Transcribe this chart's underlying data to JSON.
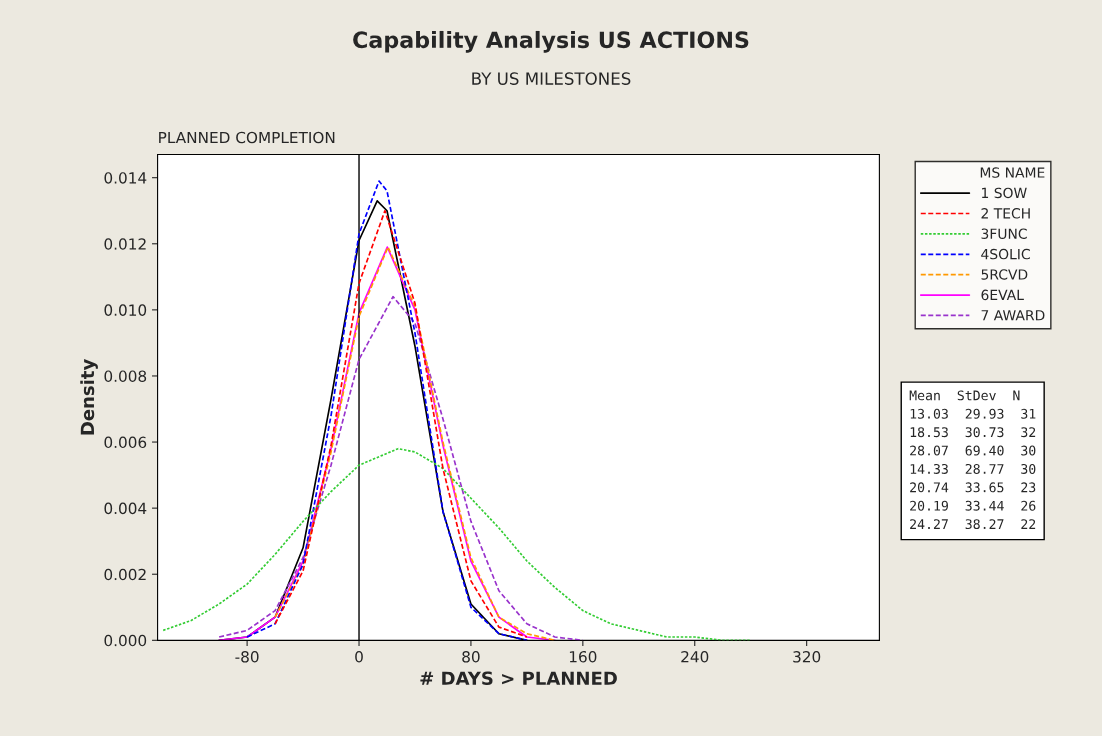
{
  "chart_data": {
    "type": "line",
    "title": "Capability Analysis US ACTIONS",
    "subtitle": "BY US MILESTONES",
    "xlabel": "# DAYS > PLANNED",
    "ylabel": "Density",
    "legend_title": "MS NAME",
    "legend": "right",
    "xlim": [
      -144,
      372
    ],
    "xticks": [
      -80,
      0,
      80,
      160,
      240,
      320
    ],
    "ylim": [
      0,
      0.0147
    ],
    "yticks": [
      {
        "value": 0,
        "label": "0.000"
      },
      {
        "value": 0.002,
        "label": "0.002"
      },
      {
        "value": 0.004,
        "label": "0.004"
      },
      {
        "value": 0.006,
        "label": "0.006"
      },
      {
        "value": 0.008,
        "label": "0.008"
      },
      {
        "value": 0.01,
        "label": "0.010"
      },
      {
        "value": 0.012,
        "label": "0.012"
      },
      {
        "value": 0.014,
        "label": "0.014"
      }
    ],
    "grid": false,
    "ref_lines": [
      {
        "axis": "x",
        "value": 0,
        "label": "PLANNED COMPLETION",
        "color": "#000000"
      }
    ],
    "annotations": [
      "Mean  StDev  N",
      "13.03  29.93  31",
      "18.53  30.73  32",
      "28.07  69.40  30",
      "14.33  28.77  30",
      "20.74  33.65  23",
      "20.19  33.44  26",
      "24.27  38.27  22"
    ],
    "series": [
      {
        "name": "1 SOW",
        "color": "#000000",
        "line_style": "solid",
        "x": [
          -100,
          -80,
          -60,
          -40,
          -20,
          0,
          13,
          20,
          40,
          60,
          80,
          100,
          120
        ],
        "values": [
          0.0,
          0.0001,
          0.0007,
          0.0028,
          0.0073,
          0.0121,
          0.0133,
          0.013,
          0.0089,
          0.0039,
          0.0011,
          0.0002,
          0.0
        ]
      },
      {
        "name": "2 TECH",
        "color": "#ff0000",
        "line_style": "dashed",
        "x": [
          -60,
          -40,
          -20,
          0,
          18.5,
          40,
          60,
          80,
          100,
          120
        ],
        "values": [
          0.0005,
          0.0021,
          0.0059,
          0.0108,
          0.013,
          0.0102,
          0.0052,
          0.0018,
          0.0004,
          0.0001
        ]
      },
      {
        "name": "3FUNC",
        "color": "#33cc33",
        "line_style": "dotted",
        "x": [
          -140,
          -120,
          -100,
          -80,
          -60,
          -40,
          -20,
          0,
          28,
          40,
          60,
          80,
          100,
          120,
          140,
          160,
          180,
          200,
          220,
          240,
          260,
          280
        ],
        "values": [
          0.0003,
          0.0006,
          0.0011,
          0.0017,
          0.0026,
          0.0036,
          0.0045,
          0.0053,
          0.0058,
          0.0057,
          0.0052,
          0.0043,
          0.0034,
          0.0024,
          0.0016,
          0.0009,
          0.0005,
          0.0003,
          0.0001,
          0.0001,
          0.0,
          0.0
        ]
      },
      {
        "name": "4SOLIC",
        "color": "#0000ff",
        "line_style": "dashed",
        "x": [
          -80,
          -60,
          -40,
          -20,
          0,
          14.3,
          20,
          40,
          60,
          80,
          100,
          120
        ],
        "values": [
          0.0001,
          0.0005,
          0.0023,
          0.0068,
          0.0123,
          0.0139,
          0.0136,
          0.0093,
          0.0039,
          0.001,
          0.0002,
          0.0
        ]
      },
      {
        "name": "5RCVD",
        "color": "#ff9900",
        "line_style": "dashed",
        "x": [
          -60,
          -40,
          -20,
          0,
          20.7,
          40,
          60,
          80,
          100,
          120,
          140
        ],
        "values": [
          0.0007,
          0.0023,
          0.0057,
          0.0098,
          0.0119,
          0.0101,
          0.006,
          0.0025,
          0.0007,
          0.0002,
          0.0
        ]
      },
      {
        "name": "6EVAL",
        "color": "#ff00ff",
        "line_style": "solid",
        "x": [
          -100,
          -80,
          -60,
          -40,
          -20,
          0,
          20.2,
          40,
          60,
          80,
          100,
          120,
          140
        ],
        "values": [
          0.0,
          0.0001,
          0.0007,
          0.0024,
          0.0058,
          0.0099,
          0.0119,
          0.01,
          0.0059,
          0.0024,
          0.0007,
          0.0001,
          0.0
        ]
      },
      {
        "name": "7 AWARD",
        "color": "#9933cc",
        "line_style": "dashed",
        "x": [
          -100,
          -80,
          -60,
          -40,
          -20,
          0,
          24.3,
          40,
          60,
          80,
          100,
          120,
          140,
          160
        ],
        "values": [
          0.0001,
          0.0003,
          0.0009,
          0.0025,
          0.0053,
          0.0085,
          0.0104,
          0.0096,
          0.0067,
          0.0036,
          0.0015,
          0.0005,
          0.0001,
          0.0
        ]
      }
    ]
  }
}
